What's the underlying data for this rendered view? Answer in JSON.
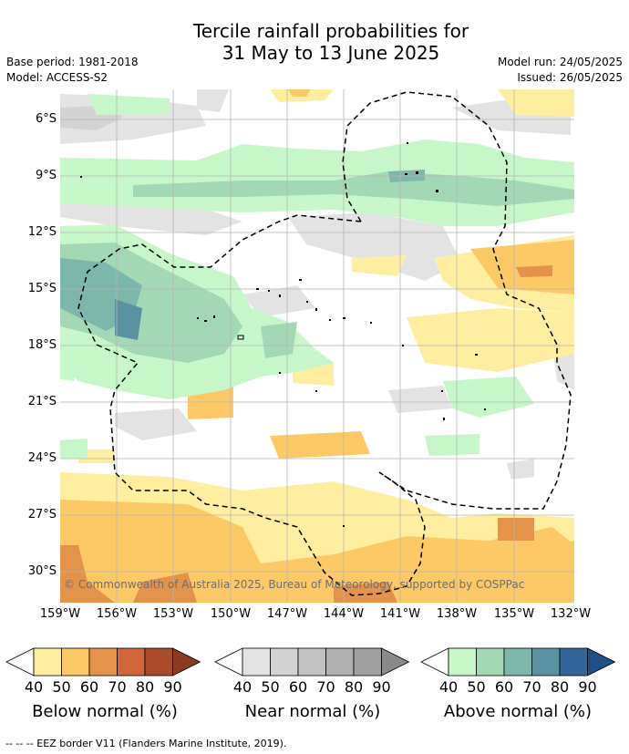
{
  "title": {
    "line1": "Tercile rainfall probabilities for",
    "line2": "31 May to 13 June 2025"
  },
  "meta": {
    "base_period": "Base period: 1981-2018",
    "model": "Model: ACCESS-S2",
    "model_run": "Model run: 24/05/2025",
    "issued": "Issued: 26/05/2025"
  },
  "map": {
    "lat_labels": [
      "6°S",
      "9°S",
      "12°S",
      "15°S",
      "18°S",
      "21°S",
      "24°S",
      "27°S",
      "30°S"
    ],
    "lon_labels": [
      "159°W",
      "156°W",
      "153°W",
      "150°W",
      "147°W",
      "144°W",
      "141°W",
      "138°W",
      "135°W",
      "132°W"
    ],
    "copyright": "© Commonwealth of Australia 2025, Bureau of Meteorology, supported by COSPPac",
    "colors": {
      "below": [
        "#ffeea0",
        "#fcc966",
        "#e5924a",
        "#d0663a",
        "#a94a2b"
      ],
      "near": [
        "#e3e3e3",
        "#d3d3d3",
        "#c2c2c2",
        "#b0b0b0",
        "#a0a0a0"
      ],
      "above": [
        "#c7f7c9",
        "#a4d8b5",
        "#7db6ab",
        "#5a92a1",
        "#33669a"
      ]
    }
  },
  "legends": [
    {
      "id": "below",
      "title": "Below normal (%)",
      "ticks": [
        "40",
        "50",
        "60",
        "70",
        "80",
        "90"
      ],
      "colors": [
        "#ffeea0",
        "#fcc966",
        "#e5924a",
        "#d0663a",
        "#a94a2b"
      ],
      "over_color": "#8b3a23"
    },
    {
      "id": "near",
      "title": "Near normal (%)",
      "ticks": [
        "40",
        "50",
        "60",
        "70",
        "80",
        "90"
      ],
      "colors": [
        "#e3e3e3",
        "#d3d3d3",
        "#c2c2c2",
        "#b0b0b0",
        "#a0a0a0"
      ],
      "over_color": "#8a8a8a"
    },
    {
      "id": "above",
      "title": "Above normal (%)",
      "ticks": [
        "40",
        "50",
        "60",
        "70",
        "80",
        "90"
      ],
      "colors": [
        "#c7f7c9",
        "#a4d8b5",
        "#7db6ab",
        "#5a92a1",
        "#33669a"
      ],
      "over_color": "#1e4f86"
    }
  ],
  "eez_note": "--  --  -- EEZ border V11 (Flanders Marine Institute, 2019)."
}
